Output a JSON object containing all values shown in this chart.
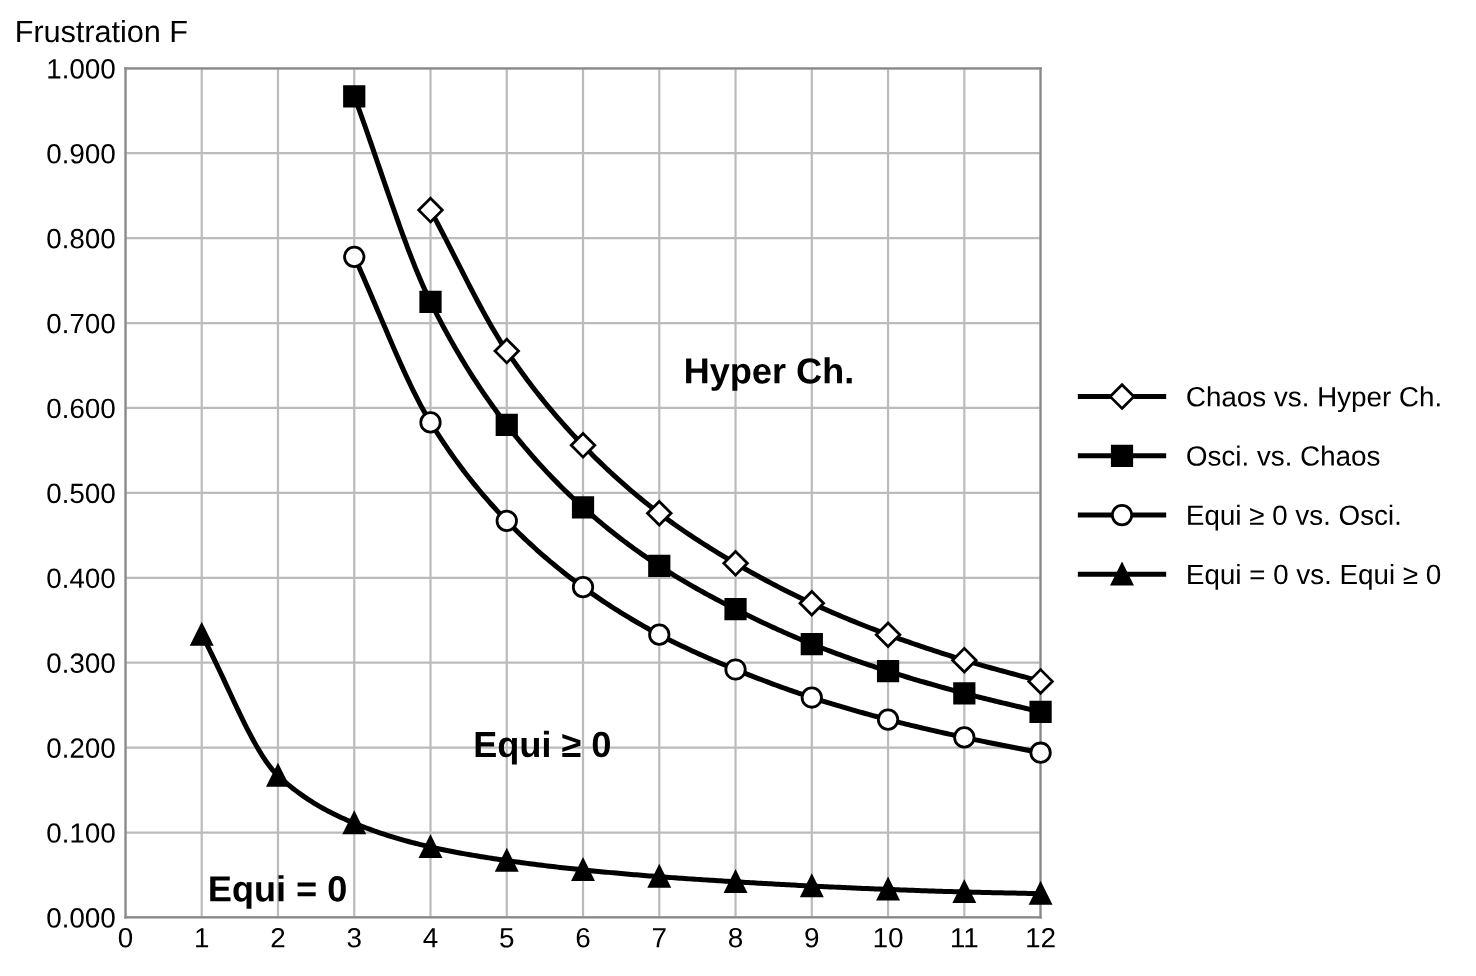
{
  "chart_data": {
    "type": "line",
    "ylabel": "Frustration F",
    "series": [
      {
        "name": "Chaos vs. Hyper Ch.",
        "color": "#000000",
        "marker": "diamond",
        "x": [
          4,
          5,
          6,
          7,
          8,
          9,
          10,
          11,
          12
        ],
        "values": [
          0.833,
          0.667,
          0.556,
          0.476,
          0.417,
          0.37,
          0.333,
          0.303,
          0.278
        ]
      },
      {
        "name": "Osci. vs. Chaos",
        "color": "#000000",
        "marker": "square",
        "x": [
          3,
          4,
          5,
          6,
          7,
          8,
          9,
          10,
          11,
          12
        ],
        "values": [
          0.967,
          0.725,
          0.58,
          0.483,
          0.414,
          0.363,
          0.322,
          0.29,
          0.264,
          0.242
        ]
      },
      {
        "name": "Equi ≥ 0 vs. Osci.",
        "color": "#000000",
        "marker": "circle",
        "x": [
          3,
          4,
          5,
          6,
          7,
          8,
          9,
          10,
          11,
          12
        ],
        "values": [
          0.778,
          0.583,
          0.467,
          0.389,
          0.333,
          0.292,
          0.259,
          0.233,
          0.212,
          0.194
        ]
      },
      {
        "name": "Equi = 0 vs. Equi ≥ 0",
        "color": "#000000",
        "marker": "triangle",
        "x": [
          1,
          2,
          3,
          4,
          5,
          6,
          7,
          8,
          9,
          10,
          11,
          12
        ],
        "values": [
          0.333,
          0.167,
          0.111,
          0.083,
          0.067,
          0.056,
          0.048,
          0.042,
          0.037,
          0.033,
          0.03,
          0.028
        ]
      }
    ],
    "annotations": [
      "Hyper Ch.",
      "Equi ≥ 0",
      "Equi = 0"
    ],
    "xlim": [
      0,
      12
    ],
    "xticks": [
      0,
      1,
      2,
      3,
      4,
      5,
      6,
      7,
      8,
      9,
      10,
      11,
      12
    ],
    "ylim": [
      0,
      1
    ],
    "yticks": [
      {
        "value": 0,
        "label": "0.000"
      },
      {
        "value": 0.1,
        "label": "0.100"
      },
      {
        "value": 0.2,
        "label": "0.200"
      },
      {
        "value": 0.3,
        "label": "0.300"
      },
      {
        "value": 0.4,
        "label": "0.400"
      },
      {
        "value": 0.5,
        "label": "0.500"
      },
      {
        "value": 0.6,
        "label": "0.600"
      },
      {
        "value": 0.7,
        "label": "0.700"
      },
      {
        "value": 0.8,
        "label": "0.800"
      },
      {
        "value": 0.9,
        "label": "0.900"
      },
      {
        "value": 1.0,
        "label": "1.000"
      }
    ],
    "grid": true,
    "legend": "right",
    "line_style": "solid"
  }
}
